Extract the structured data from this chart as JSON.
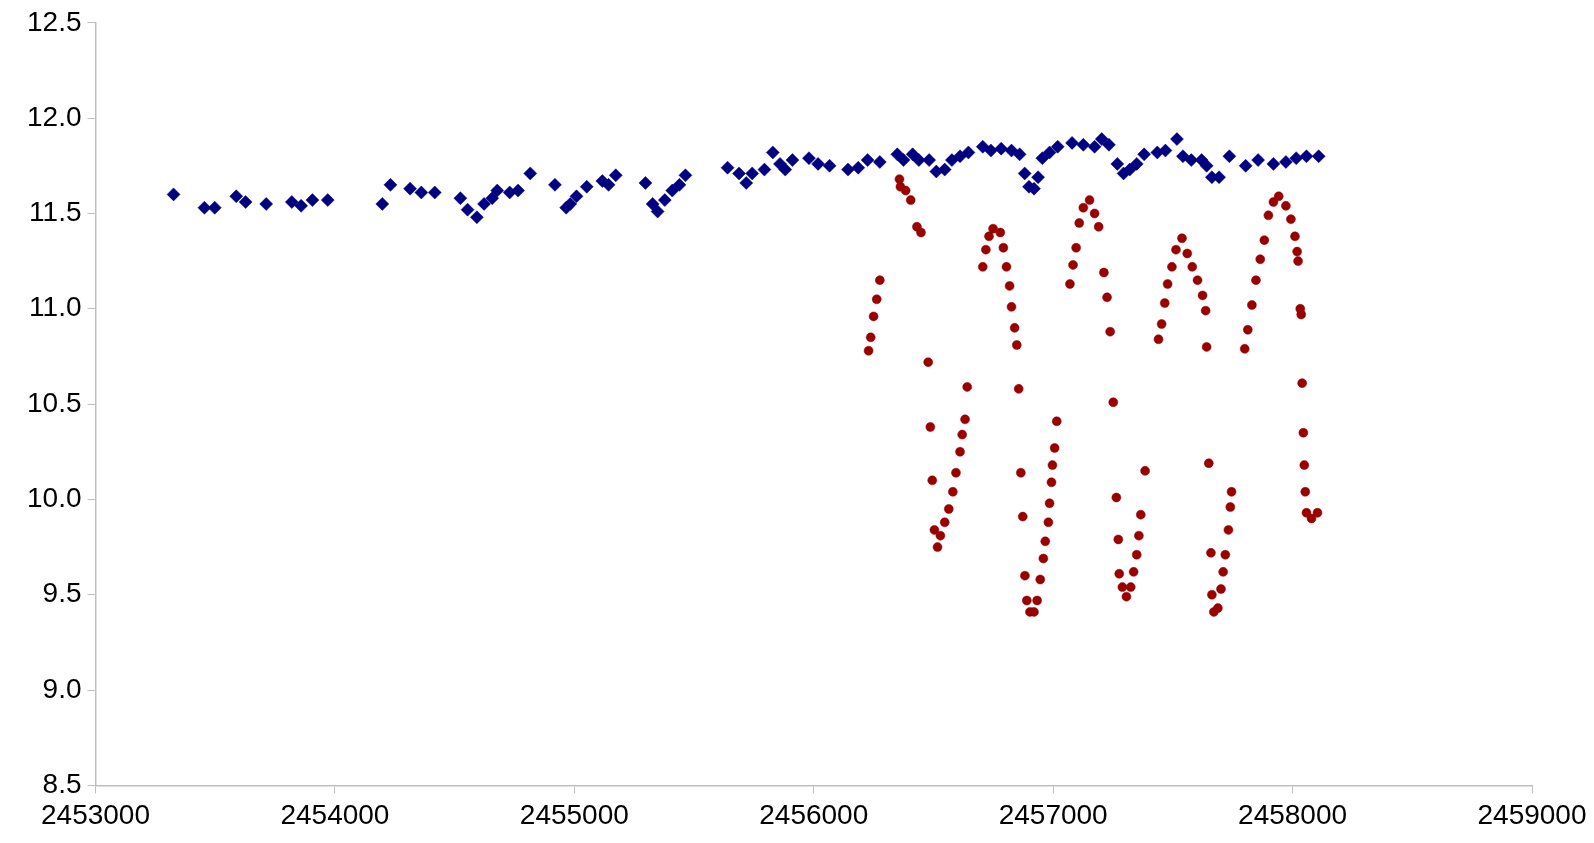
{
  "chart_data": {
    "type": "scatter",
    "xlim": [
      2453000,
      2459000
    ],
    "xticks": [
      2453000,
      2454000,
      2455000,
      2456000,
      2457000,
      2458000,
      2459000
    ],
    "ylim": [
      8.5,
      12.5
    ],
    "yticks": [
      8.5,
      {
        "value": 9,
        "label": "9.0"
      },
      9.5,
      {
        "value": 10,
        "label": "10.0"
      },
      10.5,
      {
        "value": 11,
        "label": "11.0"
      },
      11.5,
      {
        "value": 12,
        "label": "12.0"
      },
      12.5
    ],
    "grid": false,
    "legend": false,
    "series": [
      {
        "color": "#000080",
        "marker": "diamond",
        "x": [
          2453326,
          2453455,
          2453498,
          2453588,
          2453627,
          2453713,
          2453820,
          2453859,
          2453906,
          2453970,
          2454198,
          2454232,
          2454314,
          2454361,
          2454417,
          2454524,
          2454554,
          2454593,
          2454623,
          2454657,
          2454678,
          2454730,
          2454765,
          2454816,
          2454919,
          2454966,
          2454983,
          2455009,
          2455052,
          2455117,
          2455143,
          2455173,
          2455297,
          2455327,
          2455348,
          2455378,
          2455409,
          2455439,
          2455464,
          2455640,
          2455688,
          2455718,
          2455743,
          2455794,
          2455829,
          2455859,
          2455881,
          2455911,
          2455980,
          2456018,
          2456066,
          2456143,
          2456186,
          2456225,
          2456276,
          2456349,
          2456375,
          2456413,
          2456439,
          2456482,
          2456512,
          2456547,
          2456577,
          2456611,
          2456646,
          2456706,
          2456740,
          2456783,
          2456826,
          2456860,
          2456881,
          2456899,
          2456920,
          2456937,
          2456955,
          2456985,
          2457019,
          2457079,
          2457126,
          2457173,
          2457203,
          2457233,
          2457268,
          2457294,
          2457320,
          2457349,
          2457380,
          2457435,
          2457469,
          2457517,
          2457542,
          2457577,
          2457620,
          2457641,
          2457663,
          2457693,
          2457736,
          2457804,
          2457856,
          2457920,
          2457972,
          2458015,
          2458058,
          2458109
        ],
        "values": [
          11.6,
          11.53,
          11.53,
          11.59,
          11.56,
          11.55,
          11.56,
          11.54,
          11.57,
          11.57,
          11.55,
          11.65,
          11.63,
          11.61,
          11.61,
          11.58,
          11.52,
          11.48,
          11.55,
          11.58,
          11.62,
          11.61,
          11.62,
          11.71,
          11.65,
          11.53,
          11.55,
          11.59,
          11.64,
          11.67,
          11.65,
          11.7,
          11.66,
          11.55,
          11.51,
          11.57,
          11.62,
          11.65,
          11.7,
          11.74,
          11.71,
          11.66,
          11.71,
          11.73,
          11.82,
          11.76,
          11.73,
          11.78,
          11.79,
          11.76,
          11.75,
          11.73,
          11.74,
          11.78,
          11.77,
          11.81,
          11.78,
          11.81,
          11.78,
          11.78,
          11.72,
          11.73,
          11.78,
          11.8,
          11.82,
          11.85,
          11.83,
          11.84,
          11.83,
          11.81,
          11.71,
          11.64,
          11.63,
          11.69,
          11.79,
          11.82,
          11.85,
          11.87,
          11.86,
          11.85,
          11.89,
          11.86,
          11.76,
          11.71,
          11.73,
          11.76,
          11.81,
          11.82,
          11.83,
          11.89,
          11.8,
          11.78,
          11.78,
          11.75,
          11.69,
          11.69,
          11.8,
          11.75,
          11.78,
          11.76,
          11.77,
          11.79,
          11.8,
          11.8
        ]
      },
      {
        "color": "#990000",
        "marker": "circle",
        "x": [
          2456229,
          2456238,
          2456250,
          2456263,
          2456276,
          2456358,
          2456362,
          2456384,
          2456405,
          2456431,
          2456448,
          2456478,
          2456487,
          2456495,
          2456504,
          2456517,
          2456529,
          2456547,
          2456564,
          2456581,
          2456594,
          2456611,
          2456620,
          2456632,
          2456641,
          2456706,
          2456719,
          2456732,
          2456749,
          2456779,
          2456792,
          2456805,
          2456818,
          2456826,
          2456839,
          2456848,
          2456856,
          2456865,
          2456873,
          2456882,
          2456890,
          2456903,
          2456920,
          2456933,
          2456946,
          2456959,
          2456967,
          2456980,
          2456985,
          2456993,
          2456997,
          2457006,
          2457015,
          2457070,
          2457083,
          2457096,
          2457109,
          2457126,
          2457152,
          2457173,
          2457190,
          2457212,
          2457225,
          2457238,
          2457251,
          2457264,
          2457272,
          2457276,
          2457289,
          2457306,
          2457324,
          2457336,
          2457349,
          2457358,
          2457366,
          2457384,
          2457440,
          2457453,
          2457466,
          2457478,
          2457496,
          2457513,
          2457538,
          2457560,
          2457581,
          2457603,
          2457624,
          2457637,
          2457641,
          2457650,
          2457659,
          2457663,
          2457671,
          2457688,
          2457701,
          2457710,
          2457719,
          2457732,
          2457740,
          2457745,
          2457800,
          2457813,
          2457830,
          2457847,
          2457865,
          2457882,
          2457899,
          2457920,
          2457942,
          2457972,
          2457993,
          2458010,
          2458019,
          2458023,
          2458032,
          2458036,
          2458040,
          2458045,
          2458049,
          2458053,
          2458058,
          2458079,
          2458104
        ],
        "values": [
          10.78,
          10.85,
          10.96,
          11.05,
          11.15,
          11.68,
          11.64,
          11.62,
          11.57,
          11.43,
          11.4,
          10.72,
          10.38,
          10.1,
          9.84,
          9.75,
          9.81,
          9.88,
          9.95,
          10.04,
          10.14,
          10.25,
          10.34,
          10.42,
          10.59,
          11.22,
          11.31,
          11.38,
          11.42,
          11.4,
          11.32,
          11.22,
          11.12,
          11.01,
          10.9,
          10.81,
          10.58,
          10.14,
          9.91,
          9.6,
          9.47,
          9.41,
          9.41,
          9.47,
          9.58,
          9.69,
          9.78,
          9.88,
          9.98,
          10.09,
          10.18,
          10.27,
          10.41,
          11.13,
          11.23,
          11.32,
          11.45,
          11.53,
          11.57,
          11.5,
          11.43,
          11.19,
          11.06,
          10.88,
          10.51,
          10.01,
          9.79,
          9.61,
          9.54,
          9.49,
          9.54,
          9.62,
          9.71,
          9.81,
          9.92,
          10.15,
          10.84,
          10.92,
          11.03,
          11.13,
          11.22,
          11.31,
          11.37,
          11.29,
          11.22,
          11.15,
          11.07,
          10.99,
          10.8,
          10.19,
          9.72,
          9.5,
          9.41,
          9.43,
          9.53,
          9.62,
          9.71,
          9.84,
          9.96,
          10.04,
          10.79,
          10.89,
          11.02,
          11.15,
          11.26,
          11.36,
          11.49,
          11.56,
          11.59,
          11.54,
          11.47,
          11.38,
          11.3,
          11.25,
          11,
          10.97,
          10.61,
          10.35,
          10.18,
          10.04,
          9.93,
          9.9,
          9.93
        ]
      }
    ]
  }
}
